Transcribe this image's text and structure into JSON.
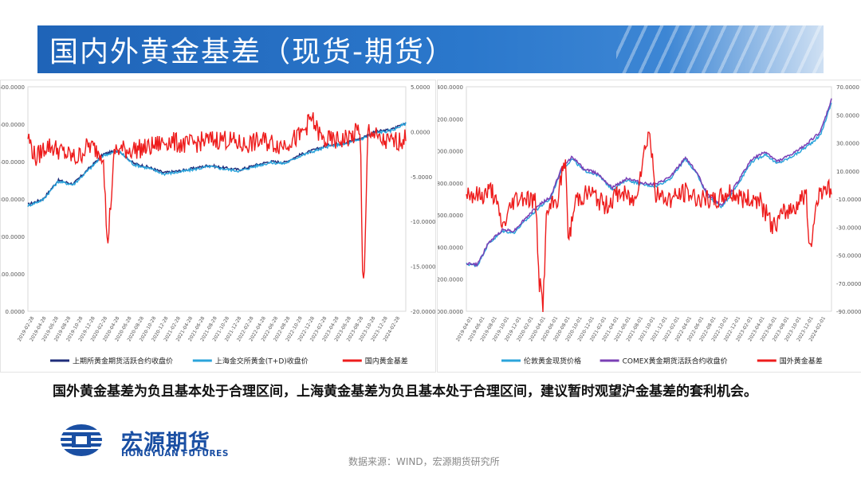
{
  "slide_title": "国内外黄金基差（现货-期货）",
  "description": "国外黄金基差为负且基本处于合理区间，上海黄金基差为负且基本处于合理区间，建议暂时观望沪金基差的套利机会。",
  "logo": {
    "cn": "宏源期货",
    "en": "HONGYUAN FUTURES"
  },
  "source": "数据来源：WIND，宏源期货研究所",
  "chart_data": [
    {
      "type": "line",
      "left_axis": {
        "ylim": [
          0,
          600
        ],
        "ticks": [
          "600.0000",
          "500.0000",
          "400.0000",
          "300.0000",
          "200.0000",
          "100.0000",
          "0.0000"
        ]
      },
      "right_axis": {
        "ylim": [
          -20,
          5
        ],
        "ticks": [
          "5.0000",
          "0.0000",
          "-5.0000",
          "-10.0000",
          "-15.0000",
          "-20.0000"
        ]
      },
      "x_ticks": [
        "2019-02-28",
        "2019-04-28",
        "2019-06-28",
        "2019-08-28",
        "2019-10-28",
        "2019-12-28",
        "2020-02-28",
        "2020-04-28",
        "2020-06-28",
        "2020-08-28",
        "2020-10-28",
        "2020-12-28",
        "2021-02-28",
        "2021-04-28",
        "2021-06-28",
        "2021-08-28",
        "2021-10-28",
        "2021-12-28",
        "2022-02-28",
        "2022-04-28",
        "2022-06-28",
        "2022-08-28",
        "2022-10-28",
        "2022-12-28",
        "2023-02-28",
        "2023-04-28",
        "2023-06-28",
        "2023-08-28",
        "2023-10-28",
        "2023-12-28",
        "2024-02-28"
      ],
      "series": [
        {
          "name": "上期所黄金期货活跃合约收盘价",
          "axis": "left",
          "color": "#1f2d7a",
          "points": [
            [
              0,
              285
            ],
            [
              0.04,
              300
            ],
            [
              0.08,
              350
            ],
            [
              0.12,
              340
            ],
            [
              0.16,
              380
            ],
            [
              0.2,
              420
            ],
            [
              0.24,
              430
            ],
            [
              0.28,
              395
            ],
            [
              0.32,
              385
            ],
            [
              0.36,
              370
            ],
            [
              0.4,
              375
            ],
            [
              0.44,
              382
            ],
            [
              0.48,
              390
            ],
            [
              0.52,
              383
            ],
            [
              0.56,
              378
            ],
            [
              0.6,
              390
            ],
            [
              0.64,
              400
            ],
            [
              0.68,
              398
            ],
            [
              0.72,
              418
            ],
            [
              0.76,
              432
            ],
            [
              0.8,
              445
            ],
            [
              0.84,
              450
            ],
            [
              0.88,
              462
            ],
            [
              0.92,
              480
            ],
            [
              0.96,
              485
            ],
            [
              1.0,
              505
            ]
          ]
        },
        {
          "name": "上海金交所黄金(T+D)收盘价",
          "axis": "left",
          "color": "#2ba4db",
          "points": [
            [
              0,
              282
            ],
            [
              0.04,
              298
            ],
            [
              0.08,
              347
            ],
            [
              0.12,
              338
            ],
            [
              0.16,
              377
            ],
            [
              0.2,
              417
            ],
            [
              0.24,
              428
            ],
            [
              0.28,
              392
            ],
            [
              0.32,
              382
            ],
            [
              0.36,
              367
            ],
            [
              0.4,
              372
            ],
            [
              0.44,
              379
            ],
            [
              0.48,
              387
            ],
            [
              0.52,
              380
            ],
            [
              0.56,
              375
            ],
            [
              0.6,
              387
            ],
            [
              0.64,
              397
            ],
            [
              0.68,
              395
            ],
            [
              0.72,
              415
            ],
            [
              0.76,
              429
            ],
            [
              0.8,
              442
            ],
            [
              0.84,
              447
            ],
            [
              0.88,
              459
            ],
            [
              0.92,
              477
            ],
            [
              0.96,
              482
            ],
            [
              1.0,
              502
            ]
          ]
        },
        {
          "name": "国内黄金基差",
          "axis": "right",
          "color": "#ee1c1c",
          "points": [
            [
              0,
              -0.5
            ],
            [
              0.02,
              -3
            ],
            [
              0.05,
              -1.5
            ],
            [
              0.08,
              -2
            ],
            [
              0.1,
              -2.5
            ],
            [
              0.13,
              -3
            ],
            [
              0.16,
              -1.5
            ],
            [
              0.2,
              -2.5
            ],
            [
              0.21,
              -13
            ],
            [
              0.23,
              -2
            ],
            [
              0.27,
              -2
            ],
            [
              0.32,
              -1.8
            ],
            [
              0.37,
              -1
            ],
            [
              0.42,
              -1.5
            ],
            [
              0.47,
              -1
            ],
            [
              0.52,
              -0.8
            ],
            [
              0.57,
              -1.5
            ],
            [
              0.62,
              -1
            ],
            [
              0.67,
              -1.5
            ],
            [
              0.72,
              -0.5
            ],
            [
              0.75,
              1.5
            ],
            [
              0.78,
              -1
            ],
            [
              0.82,
              -1
            ],
            [
              0.86,
              -0.5
            ],
            [
              0.88,
              0.5
            ],
            [
              0.885,
              -16
            ],
            [
              0.89,
              -17
            ],
            [
              0.9,
              0.5
            ],
            [
              0.93,
              -1
            ],
            [
              0.96,
              -1.2
            ],
            [
              1.0,
              -0.8
            ]
          ]
        }
      ]
    },
    {
      "type": "line",
      "left_axis": {
        "ylim": [
          1000,
          2400
        ],
        "ticks": [
          "2400.0000",
          "2200.0000",
          "2000.0000",
          "1800.0000",
          "1600.0000",
          "1400.0000",
          "1200.0000",
          "1000.0000"
        ]
      },
      "right_axis": {
        "ylim": [
          -90,
          70
        ],
        "ticks": [
          "70.0000",
          "50.0000",
          "30.0000",
          "10.0000",
          "-10.0000",
          "-30.0000",
          "-50.0000",
          "-70.0000",
          "-90.0000"
        ]
      },
      "x_ticks": [
        "2019-04-01",
        "2019-06-01",
        "2019-08-01",
        "2019-10-01",
        "2019-12-01",
        "2020-02-01",
        "2020-04-01",
        "2020-06-01",
        "2020-08-01",
        "2020-10-01",
        "2020-12-01",
        "2021-02-01",
        "2021-04-01",
        "2021-06-01",
        "2021-08-01",
        "2021-10-01",
        "2021-12-01",
        "2022-02-01",
        "2022-04-01",
        "2022-06-01",
        "2022-08-01",
        "2022-10-01",
        "2022-12-01",
        "2023-02-01",
        "2023-04-01",
        "2023-06-01",
        "2023-08-01",
        "2023-10-01",
        "2023-12-01",
        "2024-02-01"
      ],
      "series": [
        {
          "name": "伦敦黄金现货价格",
          "axis": "left",
          "color": "#2ba4db",
          "points": [
            [
              0,
              1295
            ],
            [
              0.03,
              1285
            ],
            [
              0.06,
              1420
            ],
            [
              0.1,
              1500
            ],
            [
              0.13,
              1490
            ],
            [
              0.16,
              1560
            ],
            [
              0.2,
              1650
            ],
            [
              0.23,
              1700
            ],
            [
              0.26,
              1880
            ],
            [
              0.29,
              1950
            ],
            [
              0.32,
              1880
            ],
            [
              0.36,
              1850
            ],
            [
              0.4,
              1760
            ],
            [
              0.44,
              1820
            ],
            [
              0.48,
              1790
            ],
            [
              0.52,
              1780
            ],
            [
              0.56,
              1830
            ],
            [
              0.6,
              1950
            ],
            [
              0.63,
              1860
            ],
            [
              0.66,
              1720
            ],
            [
              0.7,
              1650
            ],
            [
              0.74,
              1780
            ],
            [
              0.78,
              1930
            ],
            [
              0.82,
              1980
            ],
            [
              0.85,
              1920
            ],
            [
              0.88,
              1950
            ],
            [
              0.91,
              1990
            ],
            [
              0.94,
              2040
            ],
            [
              0.97,
              2100
            ],
            [
              1.0,
              2300
            ]
          ]
        },
        {
          "name": "COMEX黄金期货活跃合约收盘价",
          "axis": "left",
          "color": "#7a3fb5",
          "points": [
            [
              0,
              1300
            ],
            [
              0.03,
              1290
            ],
            [
              0.06,
              1425
            ],
            [
              0.1,
              1510
            ],
            [
              0.13,
              1500
            ],
            [
              0.16,
              1575
            ],
            [
              0.2,
              1665
            ],
            [
              0.23,
              1710
            ],
            [
              0.26,
              1890
            ],
            [
              0.29,
              1965
            ],
            [
              0.32,
              1890
            ],
            [
              0.36,
              1860
            ],
            [
              0.4,
              1770
            ],
            [
              0.44,
              1830
            ],
            [
              0.48,
              1800
            ],
            [
              0.52,
              1790
            ],
            [
              0.56,
              1840
            ],
            [
              0.6,
              1960
            ],
            [
              0.63,
              1870
            ],
            [
              0.66,
              1730
            ],
            [
              0.7,
              1660
            ],
            [
              0.74,
              1795
            ],
            [
              0.78,
              1945
            ],
            [
              0.82,
              1995
            ],
            [
              0.85,
              1935
            ],
            [
              0.88,
              1965
            ],
            [
              0.91,
              2005
            ],
            [
              0.94,
              2060
            ],
            [
              0.97,
              2120
            ],
            [
              1.0,
              2320
            ]
          ]
        },
        {
          "name": "国外黄金基差",
          "axis": "right",
          "color": "#ee1c1c",
          "points": [
            [
              0,
              -5
            ],
            [
              0.04,
              -8
            ],
            [
              0.07,
              -3
            ],
            [
              0.1,
              -30
            ],
            [
              0.13,
              -10
            ],
            [
              0.16,
              -8
            ],
            [
              0.19,
              -12
            ],
            [
              0.2,
              -70
            ],
            [
              0.21,
              -85
            ],
            [
              0.22,
              -20
            ],
            [
              0.25,
              -10
            ],
            [
              0.27,
              20
            ],
            [
              0.28,
              -40
            ],
            [
              0.3,
              -10
            ],
            [
              0.34,
              -5
            ],
            [
              0.38,
              -15
            ],
            [
              0.42,
              -5
            ],
            [
              0.46,
              -12
            ],
            [
              0.5,
              40
            ],
            [
              0.52,
              -8
            ],
            [
              0.56,
              -10
            ],
            [
              0.6,
              -5
            ],
            [
              0.64,
              -10
            ],
            [
              0.68,
              -12
            ],
            [
              0.72,
              -5
            ],
            [
              0.76,
              -10
            ],
            [
              0.8,
              -10
            ],
            [
              0.84,
              -30
            ],
            [
              0.87,
              -20
            ],
            [
              0.9,
              -15
            ],
            [
              0.93,
              -5
            ],
            [
              0.94,
              -50
            ],
            [
              0.96,
              -10
            ],
            [
              0.98,
              0
            ],
            [
              1.0,
              -5
            ]
          ]
        }
      ]
    }
  ]
}
